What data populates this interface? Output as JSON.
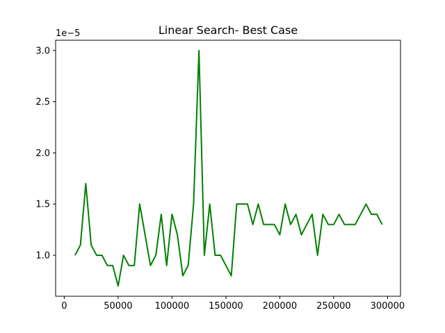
{
  "chart_data": {
    "type": "line",
    "title": "Linear Search- Best Case",
    "xlabel": "",
    "ylabel": "",
    "y_offset_text": "1e−5",
    "xlim": [
      -8000,
      312000
    ],
    "ylim": [
      0.6,
      3.1
    ],
    "x_ticks": [
      0,
      50000,
      100000,
      150000,
      200000,
      250000,
      300000
    ],
    "x_tick_labels": [
      "0",
      "50000",
      "100000",
      "150000",
      "200000",
      "250000",
      "300000"
    ],
    "y_ticks": [
      1.0,
      1.5,
      2.0,
      2.5,
      3.0
    ],
    "y_tick_labels": [
      "1.0",
      "1.5",
      "2.0",
      "2.5",
      "3.0"
    ],
    "grid": false,
    "series": [
      {
        "color": "#008000",
        "x": [
          10000,
          15000,
          20000,
          25000,
          30000,
          35000,
          40000,
          45000,
          50000,
          55000,
          60000,
          65000,
          70000,
          75000,
          80000,
          85000,
          90000,
          95000,
          100000,
          105000,
          110000,
          115000,
          120000,
          125000,
          130000,
          135000,
          140000,
          145000,
          150000,
          155000,
          160000,
          165000,
          170000,
          175000,
          180000,
          185000,
          190000,
          195000,
          200000,
          205000,
          210000,
          215000,
          220000,
          225000,
          230000,
          235000,
          240000,
          245000,
          250000,
          255000,
          260000,
          265000,
          270000,
          275000,
          280000,
          285000,
          290000,
          295000
        ],
        "y": [
          1.0,
          1.1,
          1.7,
          1.1,
          1.0,
          1.0,
          0.9,
          0.9,
          0.7,
          1.0,
          0.9,
          0.9,
          1.5,
          1.2,
          0.9,
          1.0,
          1.4,
          0.9,
          1.4,
          1.2,
          0.8,
          0.9,
          1.5,
          3.0,
          1.0,
          1.5,
          1.0,
          1.0,
          0.9,
          0.8,
          1.5,
          1.5,
          1.5,
          1.3,
          1.5,
          1.3,
          1.3,
          1.3,
          1.2,
          1.5,
          1.3,
          1.4,
          1.2,
          1.3,
          1.4,
          1.0,
          1.4,
          1.3,
          1.3,
          1.4,
          1.3,
          1.3,
          1.3,
          1.4,
          1.5,
          1.4,
          1.4,
          1.3
        ]
      }
    ]
  }
}
